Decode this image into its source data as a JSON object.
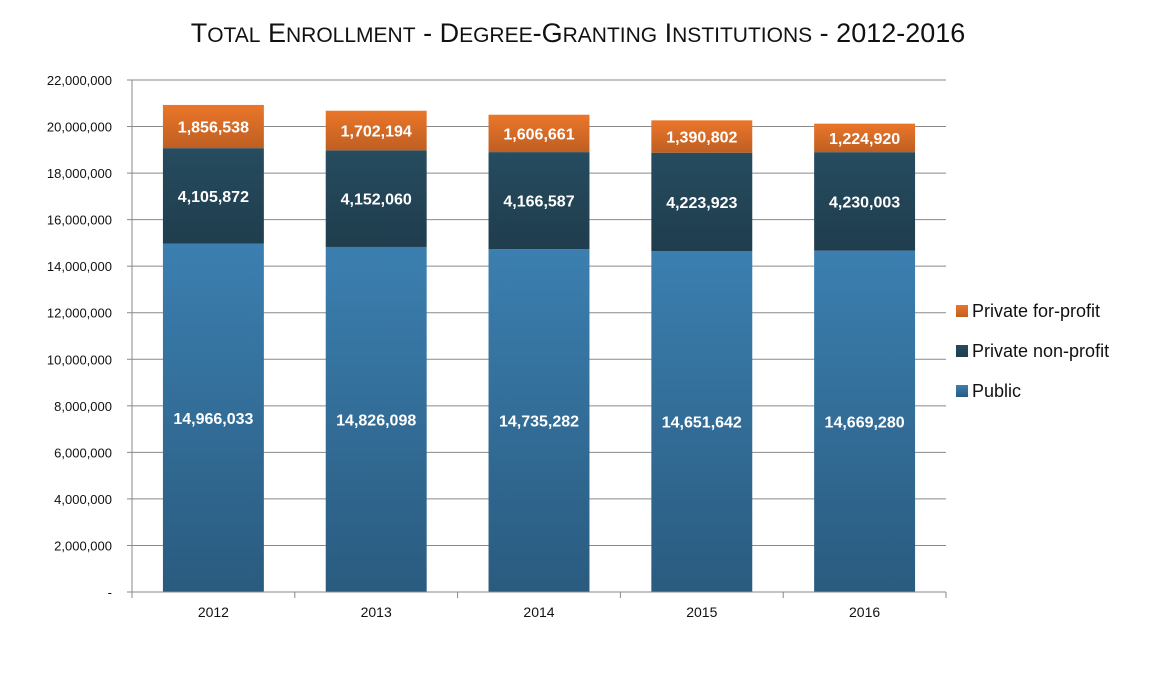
{
  "chart_data": {
    "type": "bar",
    "stacked": true,
    "title": "Total Enrollment - Degree-Granting Institutions - 2012-2016",
    "categories": [
      "2012",
      "2013",
      "2014",
      "2015",
      "2016"
    ],
    "series": [
      {
        "name": "Public",
        "values": [
          14966033,
          14826098,
          14735282,
          14651642,
          14669280
        ],
        "labels": [
          "14,966,033",
          "14,826,098",
          "14,735,282",
          "14,651,642",
          "14,669,280"
        ],
        "color": "#3b7fb0"
      },
      {
        "name": "Private non-profit",
        "values": [
          4105872,
          4152060,
          4166587,
          4223923,
          4230003
        ],
        "labels": [
          "4,105,872",
          "4,152,060",
          "4,166,587",
          "4,223,923",
          "4,230,003"
        ],
        "color": "#24485a"
      },
      {
        "name": "Private for-profit",
        "values": [
          1856538,
          1702194,
          1606661,
          1390802,
          1224920
        ],
        "labels": [
          "1,856,538",
          "1,702,194",
          "1,606,661",
          "1,390,802",
          "1,224,920"
        ],
        "color": "#e07028"
      }
    ],
    "legend_order": [
      "Private for-profit",
      "Private non-profit",
      "Public"
    ],
    "ylim": [
      0,
      22000000
    ],
    "yticks": [
      0,
      2000000,
      4000000,
      6000000,
      8000000,
      10000000,
      12000000,
      14000000,
      16000000,
      18000000,
      20000000,
      22000000
    ],
    "ytick_labels": [
      "-",
      "2,000,000",
      "4,000,000",
      "6,000,000",
      "8,000,000",
      "10,000,000",
      "12,000,000",
      "14,000,000",
      "16,000,000",
      "18,000,000",
      "20,000,000",
      "22,000,000"
    ],
    "grid": true,
    "legend_position": "right"
  }
}
